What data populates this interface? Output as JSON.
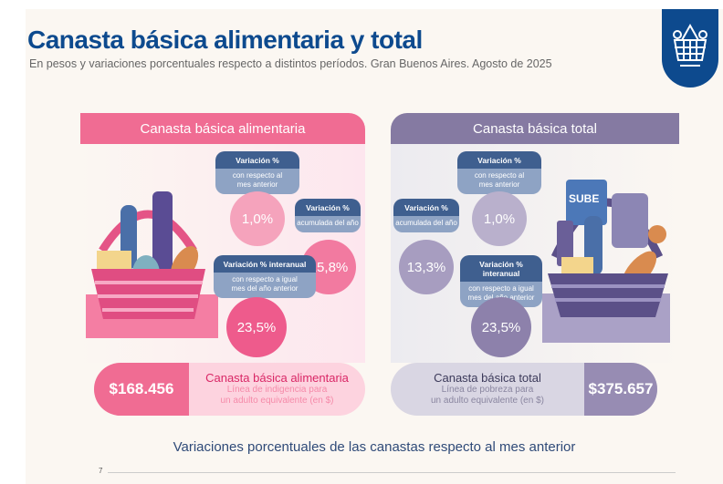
{
  "header": {
    "title": "Canasta básica alimentaria y total",
    "subtitle": "En pesos y variaciones porcentuales respecto a distintos períodos. Gran Buenos Aires. Agosto de 2025",
    "badge_icon": "basket-icon"
  },
  "cba": {
    "title": "Canasta básica alimentaria",
    "monthly": {
      "title": "Variación %",
      "sub1": "con respecto al",
      "sub2": "mes anterior",
      "value": "1,0%"
    },
    "ytd": {
      "title": "Variación %",
      "sub1": "acumulada del año",
      "value": "15,8%"
    },
    "yoy": {
      "title": "Variación % interanual",
      "sub1": "con respecto a igual",
      "sub2": "mes del año anterior",
      "value": "23,5%"
    },
    "amount": "$168.456",
    "label": "Canasta básica alimentaria",
    "desc1": "Línea de indigencia para",
    "desc2": "un adulto equivalente (en $)"
  },
  "cbt": {
    "title": "Canasta básica total",
    "monthly": {
      "title": "Variación %",
      "sub1": "con respecto al",
      "sub2": "mes anterior",
      "value": "1,0%"
    },
    "ytd": {
      "title": "Variación %",
      "sub1": "acumulada del año",
      "value": "13,3%"
    },
    "yoy": {
      "title": "Variación % interanual",
      "sub1": "con respecto a igual",
      "sub2": "mes del año anterior",
      "value": "23,5%"
    },
    "amount": "$375.657",
    "label": "Canasta básica total",
    "desc1": "Línea de pobreza para",
    "desc2": "un adulto equivalente (en $)",
    "card_text": "SUBE"
  },
  "section": {
    "title": "Variaciones porcentuales de las canastas respecto al mes anterior",
    "y_tick": "7"
  },
  "colors": {
    "brand": "#0d4a8e",
    "pink": "#f06c93",
    "purple": "#857aa2"
  }
}
